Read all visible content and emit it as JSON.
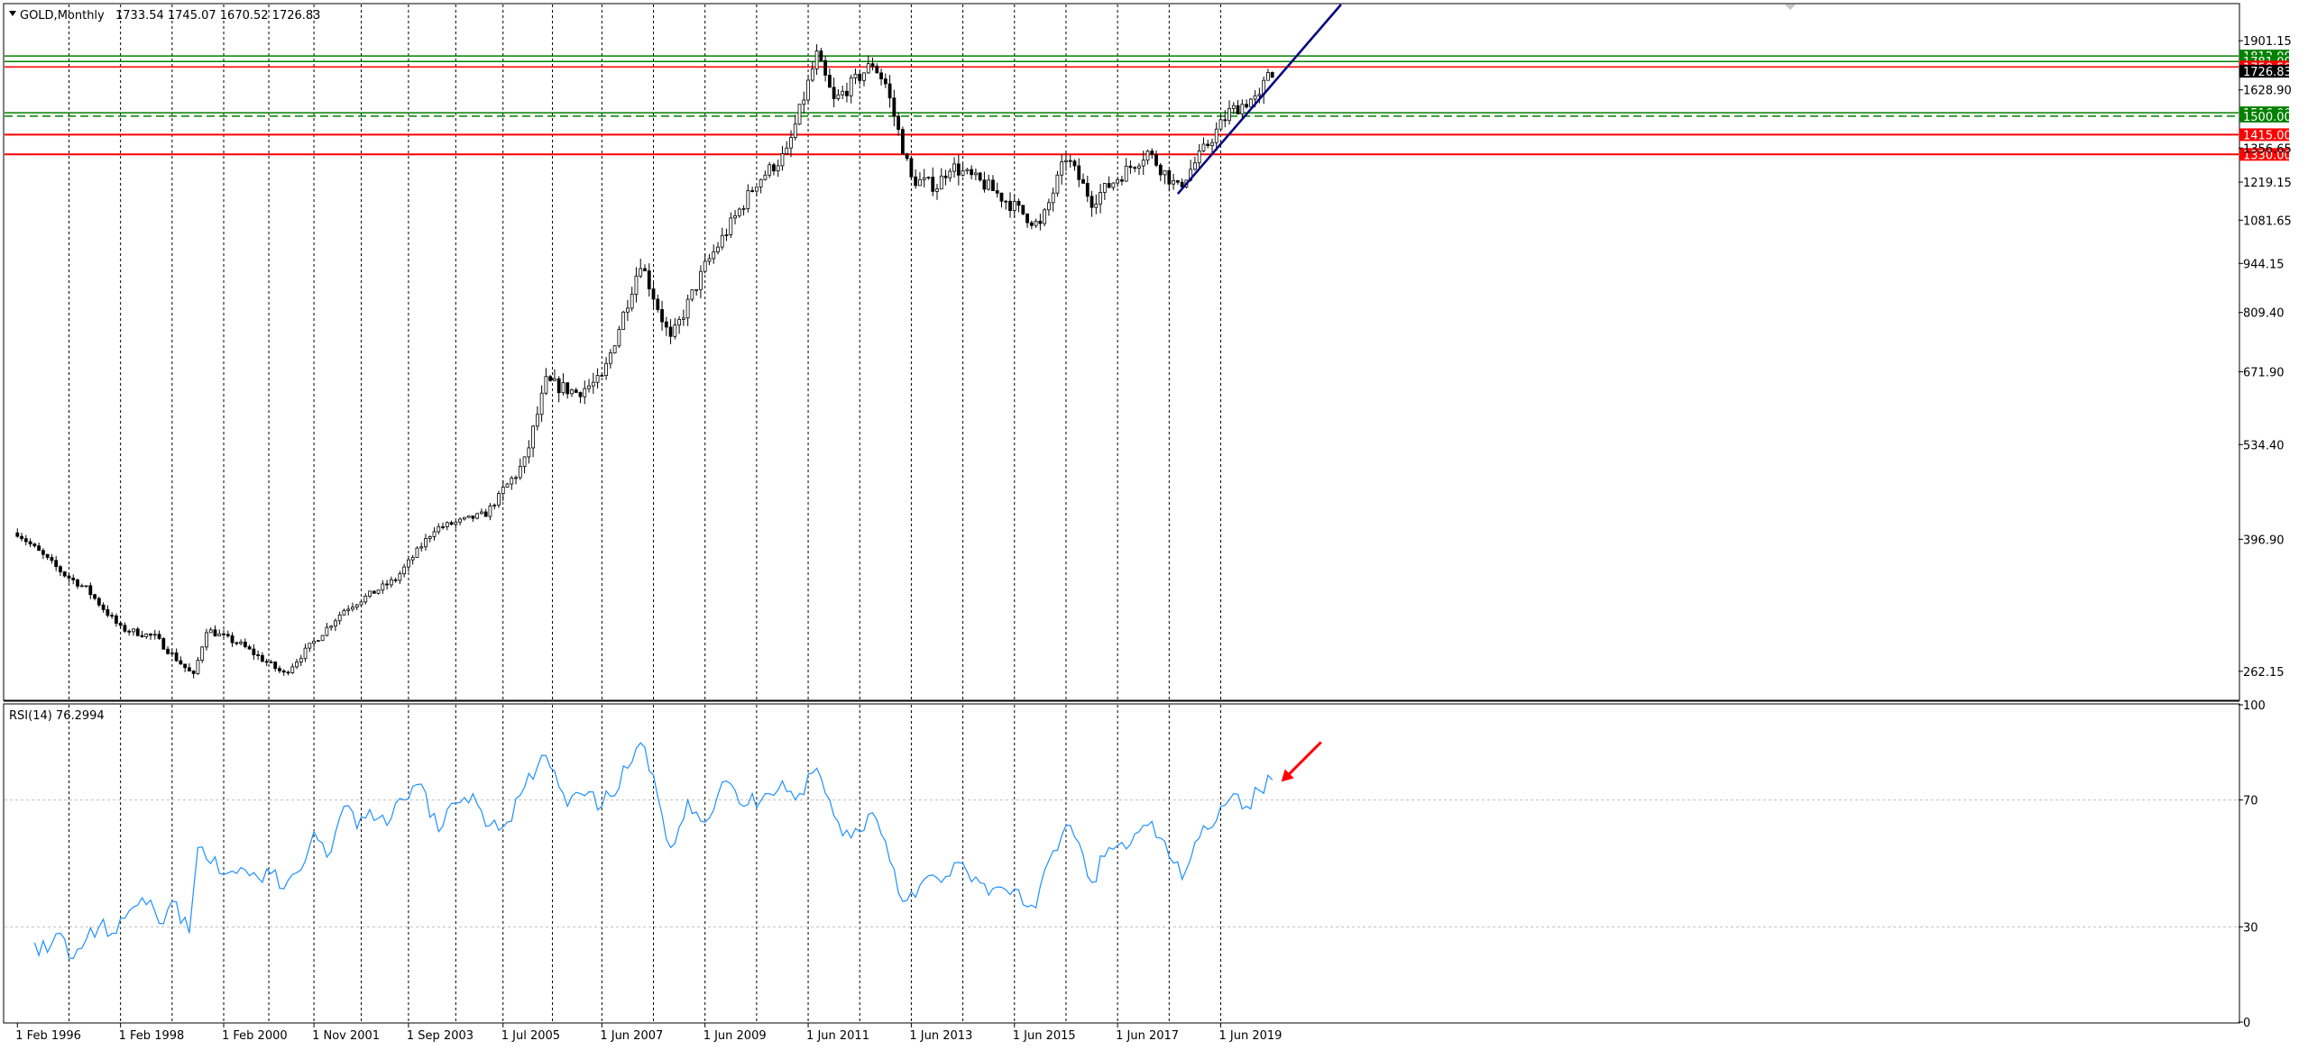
{
  "header": {
    "symbol_timeframe": "GOLD,Monthly",
    "ohlc": "1733.54 1745.07 1670.52 1726.83"
  },
  "rsi_panel": {
    "label": "RSI(14) 76.2994"
  },
  "colors": {
    "background": "#ffffff",
    "candle": "#000000",
    "support_green": "#008000",
    "resistance_red": "#ff0000",
    "trendline": "#000080",
    "rsi_line": "#1e90ff",
    "arrow": "#ff0000"
  },
  "chart_data": [
    {
      "type": "candlestick",
      "title": "GOLD,Monthly",
      "scale": "log",
      "ylim": [
        240,
        2130
      ],
      "x_ticks": [
        "1 Feb 1996",
        "1 Feb 1998",
        "1 Feb 2000",
        "1 Nov 2001",
        "1 Sep 2003",
        "1 Jul 2005",
        "1 Jun 2007",
        "1 Jun 2009",
        "1 Jun 2011",
        "1 Jun 2013",
        "1 Jun 2015",
        "1 Jun 2017",
        "1 Jun 2019"
      ],
      "y_ticks": [
        262.15,
        396.9,
        534.4,
        671.9,
        809.4,
        944.15,
        1081.65,
        1219.15,
        1356.65,
        1628.9,
        1901.15
      ],
      "levels": [
        {
          "label": "1812.00",
          "value": 1812.0,
          "kind": "support",
          "color": "#008000"
        },
        {
          "label": "1781.00",
          "value": 1781.0,
          "kind": "support",
          "color": "#008000"
        },
        {
          "label": "1750.58",
          "value": 1750.58,
          "kind": "resistance",
          "color": "#ff0000"
        },
        {
          "label": "1726.83",
          "value": 1726.83,
          "kind": "current-price",
          "color": "#000000"
        },
        {
          "label": "1516.00",
          "value": 1516.0,
          "kind": "support",
          "color": "#008000"
        },
        {
          "label": "1500.00",
          "value": 1500.0,
          "kind": "support-dashed",
          "color": "#008000"
        },
        {
          "label": "1415.00",
          "value": 1415.0,
          "kind": "resistance",
          "color": "#ff0000"
        },
        {
          "label": "1330.00",
          "value": 1330.0,
          "kind": "resistance",
          "color": "#ff0000"
        }
      ],
      "trendline": {
        "from": {
          "date": "2018-08",
          "price": 1175
        },
        "to": {
          "date": "2021-10",
          "price": 2130
        }
      },
      "price_path": [
        [
          "1996-02",
          405
        ],
        [
          "1997-01",
          355
        ],
        [
          "1997-06",
          340
        ],
        [
          "1998-02",
          300
        ],
        [
          "1998-10",
          292
        ],
        [
          "1999-07",
          258
        ],
        [
          "1999-10",
          299
        ],
        [
          "2000-06",
          285
        ],
        [
          "2001-04",
          260
        ],
        [
          "2002-06",
          318
        ],
        [
          "2003-06",
          350
        ],
        [
          "2004-03",
          410
        ],
        [
          "2005-03",
          430
        ],
        [
          "2005-12",
          505
        ],
        [
          "2006-05",
          650
        ],
        [
          "2006-12",
          630
        ],
        [
          "2007-06",
          655
        ],
        [
          "2008-03",
          950
        ],
        [
          "2008-10",
          740
        ],
        [
          "2009-06",
          935
        ],
        [
          "2010-06",
          1220
        ],
        [
          "2011-01",
          1335
        ],
        [
          "2011-08",
          1815
        ],
        [
          "2011-12",
          1570
        ],
        [
          "2012-09",
          1770
        ],
        [
          "2012-12",
          1660
        ],
        [
          "2013-06",
          1230
        ],
        [
          "2013-12",
          1205
        ],
        [
          "2014-03",
          1285
        ],
        [
          "2014-12",
          1200
        ],
        [
          "2015-12",
          1060
        ],
        [
          "2016-06",
          1320
        ],
        [
          "2016-12",
          1150
        ],
        [
          "2017-09",
          1280
        ],
        [
          "2018-01",
          1340
        ],
        [
          "2018-08",
          1195
        ],
        [
          "2019-01",
          1320
        ],
        [
          "2019-08",
          1520
        ],
        [
          "2020-01",
          1580
        ],
        [
          "2020-03",
          1580
        ],
        [
          "2020-05",
          1730
        ],
        [
          "2020-06",
          1726.83
        ]
      ]
    },
    {
      "type": "line",
      "title": "RSI(14) 76.2994",
      "ylim": [
        0,
        100
      ],
      "y_ticks": [
        0,
        30,
        70,
        100
      ],
      "reference_lines": [
        30,
        70
      ],
      "series": [
        {
          "values": [
            [
              "1996-06",
              25
            ],
            [
              "1996-09",
              22
            ],
            [
              "1996-12",
              28
            ],
            [
              "1997-03",
              20
            ],
            [
              "1997-06",
              26
            ],
            [
              "1997-09",
              30
            ],
            [
              "1998-01",
              28
            ],
            [
              "1998-04",
              35
            ],
            [
              "1998-08",
              37
            ],
            [
              "1998-12",
              31
            ],
            [
              "1999-02",
              38
            ],
            [
              "1999-06",
              28
            ],
            [
              "1999-08",
              55
            ],
            [
              "1999-11",
              50
            ],
            [
              "2000-03",
              47
            ],
            [
              "2000-07",
              48
            ],
            [
              "2000-11",
              44
            ],
            [
              "2001-02",
              48
            ],
            [
              "2001-04",
              42
            ],
            [
              "2001-08",
              48
            ],
            [
              "2001-11",
              60
            ],
            [
              "2002-02",
              52
            ],
            [
              "2002-06",
              68
            ],
            [
              "2002-09",
              61
            ],
            [
              "2002-12",
              67
            ],
            [
              "2003-04",
              62
            ],
            [
              "2003-08",
              70
            ],
            [
              "2003-12",
              75
            ],
            [
              "2004-04",
              60
            ],
            [
              "2004-08",
              69
            ],
            [
              "2004-12",
              72
            ],
            [
              "2005-04",
              62
            ],
            [
              "2005-08",
              63
            ],
            [
              "2005-12",
              74
            ],
            [
              "2006-05",
              84
            ],
            [
              "2006-10",
              68
            ],
            [
              "2007-01",
              72
            ],
            [
              "2007-06",
              68
            ],
            [
              "2007-12",
              80
            ],
            [
              "2008-03",
              88
            ],
            [
              "2008-07",
              71
            ],
            [
              "2008-10",
              55
            ],
            [
              "2009-02",
              70
            ],
            [
              "2009-06",
              63
            ],
            [
              "2009-11",
              76
            ],
            [
              "2010-03",
              68
            ],
            [
              "2010-08",
              72
            ],
            [
              "2010-12",
              76
            ],
            [
              "2011-03",
              70
            ],
            [
              "2011-08",
              80
            ],
            [
              "2011-12",
              65
            ],
            [
              "2012-04",
              58
            ],
            [
              "2012-09",
              66
            ],
            [
              "2012-12",
              57
            ],
            [
              "2013-04",
              38
            ],
            [
              "2013-09",
              45
            ],
            [
              "2014-01",
              44
            ],
            [
              "2014-06",
              50
            ],
            [
              "2014-12",
              40
            ],
            [
              "2015-06",
              42
            ],
            [
              "2015-11",
              36
            ],
            [
              "2016-03",
              54
            ],
            [
              "2016-07",
              62
            ],
            [
              "2016-12",
              44
            ],
            [
              "2017-04",
              55
            ],
            [
              "2017-09",
              56
            ],
            [
              "2018-01",
              62
            ],
            [
              "2018-04",
              58
            ],
            [
              "2018-09",
              45
            ],
            [
              "2019-01",
              58
            ],
            [
              "2019-06",
              68
            ],
            [
              "2019-09",
              72
            ],
            [
              "2019-12",
              68
            ],
            [
              "2020-03",
              73
            ],
            [
              "2020-06",
              76.3
            ]
          ]
        }
      ],
      "annotation": {
        "type": "arrow",
        "points_to": [
          "2020-06",
          76.3
        ],
        "color": "#ff0000"
      }
    }
  ]
}
